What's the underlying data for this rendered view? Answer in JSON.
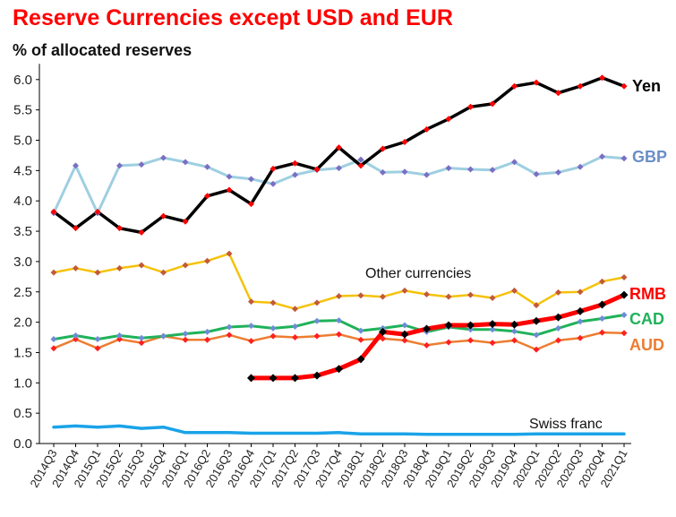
{
  "chart_data": {
    "type": "line",
    "title": "Reserve Currencies except USD and EUR",
    "subtitle": "% of allocated reserves",
    "ylim": [
      0,
      6.2
    ],
    "yticks": [
      "0.0",
      "0.5",
      "1.0",
      "1.5",
      "2.0",
      "2.5",
      "3.0",
      "3.5",
      "4.0",
      "4.5",
      "5.0",
      "5.5",
      "6.0"
    ],
    "grid": false,
    "categories": [
      "2014Q3",
      "2014Q4",
      "2015Q1",
      "2015Q2",
      "2015Q3",
      "2015Q4",
      "2016Q1",
      "2016Q2",
      "2016Q3",
      "2016Q4",
      "2017Q1",
      "2017Q2",
      "2017Q3",
      "2017Q4",
      "2018Q1",
      "2018Q2",
      "2018Q3",
      "2018Q4",
      "2019Q1",
      "2019Q2",
      "2019Q3",
      "2019Q4",
      "2020Q1",
      "2020Q2",
      "2020Q3",
      "2020Q4",
      "2021Q1"
    ],
    "series": [
      {
        "name": "Yen",
        "line_color": "#000000",
        "marker_color": "#ff0000",
        "label_color": "#000000",
        "values": [
          3.82,
          3.55,
          3.82,
          3.55,
          3.48,
          3.75,
          3.66,
          4.08,
          4.18,
          3.95,
          4.53,
          4.62,
          4.52,
          4.88,
          4.58,
          4.86,
          4.97,
          5.18,
          5.35,
          5.55,
          5.6,
          5.89,
          5.95,
          5.78,
          5.89,
          6.03,
          5.89
        ]
      },
      {
        "name": "GBP",
        "line_color": "#9ecfe0",
        "marker_color": "#7b6fc4",
        "label_color": "#6a8fc6",
        "values": [
          3.8,
          4.58,
          3.8,
          4.58,
          4.6,
          4.71,
          4.64,
          4.56,
          4.4,
          4.36,
          4.28,
          4.43,
          4.51,
          4.54,
          4.68,
          4.47,
          4.48,
          4.43,
          4.54,
          4.52,
          4.51,
          4.64,
          4.44,
          4.47,
          4.56,
          4.73,
          4.7
        ]
      },
      {
        "name": "Other currencies",
        "line_color": "#f5c20b",
        "marker_color": "#c25a3a",
        "label_color": "#111111",
        "values": [
          2.82,
          2.89,
          2.82,
          2.89,
          2.94,
          2.82,
          2.94,
          3.01,
          3.13,
          2.34,
          2.32,
          2.22,
          2.32,
          2.43,
          2.44,
          2.42,
          2.52,
          2.46,
          2.42,
          2.45,
          2.4,
          2.52,
          2.28,
          2.49,
          2.5,
          2.67,
          2.74
        ]
      },
      {
        "name": "RMB",
        "line_color": "#ff0000",
        "marker_color": "#000000",
        "label_color": "#ff0000",
        "values": [
          null,
          null,
          null,
          null,
          null,
          null,
          null,
          null,
          null,
          1.08,
          1.08,
          1.08,
          1.12,
          1.23,
          1.39,
          1.84,
          1.8,
          1.89,
          1.95,
          1.95,
          1.97,
          1.96,
          2.02,
          2.08,
          2.18,
          2.29,
          2.45
        ]
      },
      {
        "name": "CAD",
        "line_color": "#1fb25a",
        "marker_color": "#6f8bd6",
        "label_color": "#1fb25a",
        "values": [
          1.72,
          1.78,
          1.72,
          1.78,
          1.74,
          1.77,
          1.81,
          1.84,
          1.92,
          1.94,
          1.9,
          1.93,
          2.02,
          2.03,
          1.86,
          1.9,
          1.95,
          1.84,
          1.92,
          1.88,
          1.88,
          1.85,
          1.79,
          1.9,
          2.01,
          2.06,
          2.12
        ]
      },
      {
        "name": "AUD",
        "line_color": "#ed7d31",
        "marker_color": "#ff2020",
        "label_color": "#ed7d31",
        "values": [
          1.57,
          1.72,
          1.57,
          1.72,
          1.66,
          1.77,
          1.71,
          1.71,
          1.79,
          1.69,
          1.77,
          1.75,
          1.77,
          1.8,
          1.71,
          1.73,
          1.7,
          1.62,
          1.67,
          1.7,
          1.66,
          1.7,
          1.55,
          1.7,
          1.74,
          1.83,
          1.82
        ]
      },
      {
        "name": "Swiss franc",
        "line_color": "#1aa3e8",
        "marker_color": null,
        "label_color": "#111111",
        "values": [
          0.27,
          0.29,
          0.27,
          0.29,
          0.25,
          0.27,
          0.18,
          0.18,
          0.18,
          0.17,
          0.17,
          0.17,
          0.17,
          0.18,
          0.16,
          0.16,
          0.16,
          0.15,
          0.15,
          0.15,
          0.15,
          0.15,
          0.16,
          0.16,
          0.16,
          0.16,
          0.16
        ]
      }
    ]
  }
}
